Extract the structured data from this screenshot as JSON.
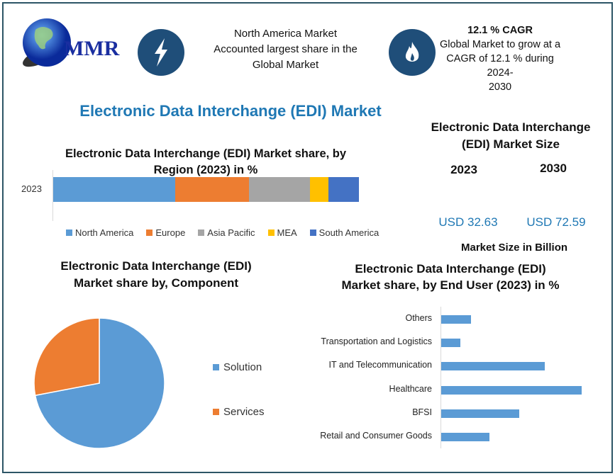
{
  "logo": {
    "text": "MMR"
  },
  "header": {
    "info1": {
      "icon": "lightning-icon",
      "lines": [
        "North America Market",
        "Accounted largest share in the",
        "Global Market"
      ]
    },
    "info2": {
      "icon": "flame-icon",
      "title": "12.1 % CAGR",
      "lines": [
        "Global Market to grow at a",
        "CAGR of 12.1 % during 2024-",
        "2030"
      ]
    }
  },
  "main_title": "Electronic Data Interchange (EDI) Market",
  "market_size": {
    "title_lines": [
      "Electronic Data Interchange",
      "(EDI) Market Size"
    ],
    "years": [
      "2023",
      "2030"
    ],
    "values": [
      "USD 32.63",
      "USD 72.59"
    ],
    "footer": "Market Size in Billion"
  },
  "colors": {
    "accent": "#1f78b4",
    "icon_bg": "#1f4e79"
  },
  "chart_data": [
    {
      "type": "bar",
      "orientation": "horizontal-stacked",
      "title_lines": [
        "Electronic Data Interchange (EDI) Market share, by",
        "Region (2023)  in %"
      ],
      "categories": [
        "2023"
      ],
      "series": [
        {
          "name": "North America",
          "values": [
            40
          ],
          "color": "#5b9bd5"
        },
        {
          "name": "Europe",
          "values": [
            24
          ],
          "color": "#ed7d31"
        },
        {
          "name": "Asia Pacific",
          "values": [
            20
          ],
          "color": "#a5a5a5"
        },
        {
          "name": "MEA",
          "values": [
            6
          ],
          "color": "#ffc000"
        },
        {
          "name": "South America",
          "values": [
            10
          ],
          "color": "#4472c4"
        }
      ],
      "legend": "bottom"
    },
    {
      "type": "pie",
      "title_lines": [
        "Electronic Data Interchange (EDI)",
        "Market share by, Component"
      ],
      "slices": [
        {
          "name": "Solution",
          "value": 72,
          "color": "#5b9bd5"
        },
        {
          "name": "Services",
          "value": 28,
          "color": "#ed7d31"
        }
      ],
      "legend": "right"
    },
    {
      "type": "bar",
      "orientation": "horizontal",
      "title_lines": [
        "Electronic Data Interchange (EDI)",
        "Market share, by End User (2023)  in %"
      ],
      "categories": [
        "Others",
        "Transportation and Logistics",
        "IT and Telecommunication",
        "Healthcare",
        "BFSI",
        "Retail and Consumer Goods"
      ],
      "values": [
        7.1,
        4.6,
        24.7,
        33.5,
        18.6,
        11.5
      ],
      "color": "#5b9bd5"
    }
  ]
}
